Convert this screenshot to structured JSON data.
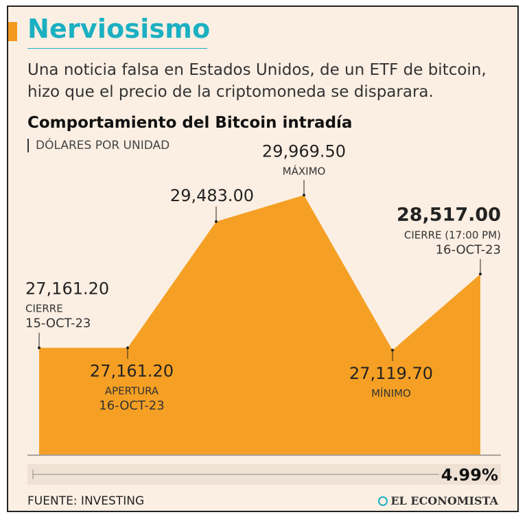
{
  "header": {
    "title": "Nerviosismo",
    "subtitle": "Una noticia falsa en Estados Unidos, de un  ETF de bitcoin, hizo que el precio de la criptomoneda se disparara."
  },
  "chart_data": {
    "type": "area",
    "title": "Comportamiento del Bitcoin intradía",
    "unit": "DÓLARES POR UNIDAD",
    "ylim": [
      25200,
      30200
    ],
    "color": "#f5a024",
    "points": [
      {
        "value": 27161.2,
        "label": "27,161.20",
        "sub1": "CIERRE",
        "sub2": "15-OCT-23"
      },
      {
        "value": 27161.2,
        "label": "27,161.20",
        "sub1": "APERTURA",
        "sub2": "16-OCT-23"
      },
      {
        "value": 29483.0,
        "label": "29,483.00",
        "sub1": "",
        "sub2": ""
      },
      {
        "value": 29969.5,
        "label": "29,969.50",
        "sub1": "MÁXIMO",
        "sub2": ""
      },
      {
        "value": 27119.7,
        "label": "27,119.70",
        "sub1": "MÍNIMO",
        "sub2": ""
      },
      {
        "value": 28517.0,
        "label": "28,517.00",
        "sub1": "CIERRE (17:00 PM)",
        "sub2": "16-OCT-23"
      }
    ],
    "change": "4.99%"
  },
  "footer": {
    "source": "FUENTE: INVESTING",
    "logo": "EL ECONOMISTA"
  }
}
